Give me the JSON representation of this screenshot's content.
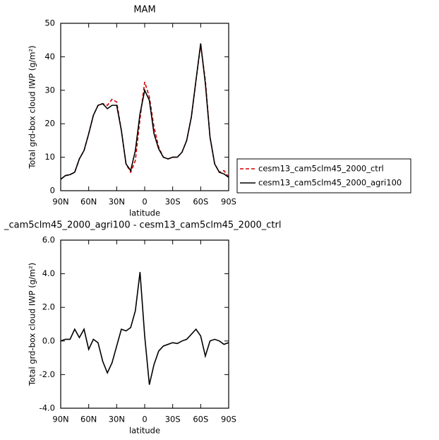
{
  "chart_data": [
    {
      "type": "line",
      "title": "MAM",
      "xlabel": "latitude",
      "ylabel": "Total grd-box cloud IWP (g/m²)",
      "x": [
        90,
        85,
        80,
        75,
        70,
        65,
        60,
        55,
        50,
        45,
        40,
        35,
        30,
        25,
        20,
        15,
        10,
        5,
        0,
        -5,
        -10,
        -15,
        -20,
        -25,
        -30,
        -35,
        -40,
        -45,
        -50,
        -55,
        -60,
        -65,
        -70,
        -75,
        -80,
        -85,
        -90
      ],
      "series": [
        {
          "name": "cesm13_cam5clm45_2000_ctrl",
          "color": "#d40000",
          "linestyle": "dashed",
          "values": [
            3.4,
            4.5,
            4.8,
            5.5,
            9.5,
            12,
            17,
            22.5,
            25.5,
            26,
            25.5,
            27.3,
            26.5,
            18,
            8,
            5.5,
            9,
            21.5,
            32.5,
            28,
            19,
            13,
            10,
            9.5,
            10,
            10,
            11.5,
            15,
            22,
            33,
            43.5,
            33,
            16,
            8,
            5.5,
            6,
            4
          ]
        },
        {
          "name": "cesm13_cam5clm45_2000_agri100",
          "color": "#000000",
          "linestyle": "solid",
          "values": [
            3.4,
            4.5,
            4.8,
            5.5,
            9.5,
            12,
            17,
            22.5,
            25.5,
            26,
            24.5,
            25.5,
            25.5,
            18,
            8,
            6,
            12,
            23,
            30,
            27,
            17,
            12.5,
            10,
            9.5,
            10,
            10,
            11.5,
            15,
            22,
            33,
            44,
            32,
            16,
            8,
            5.5,
            5,
            4
          ]
        }
      ],
      "xlim": [
        90,
        -90
      ],
      "xticks": [
        {
          "value": 90,
          "label": "90N"
        },
        {
          "value": 60,
          "label": "60N"
        },
        {
          "value": 30,
          "label": "30N"
        },
        0,
        {
          "value": -30,
          "label": "30S"
        },
        {
          "value": -60,
          "label": "60S"
        },
        {
          "value": -90,
          "label": "90S"
        }
      ],
      "ylim": [
        0,
        50
      ],
      "yticks": [
        0,
        10,
        20,
        30,
        40,
        50
      ],
      "legend": "right"
    },
    {
      "type": "line",
      "title": "_cam5clm45_2000_agri100 - cesm13_cam5clm45_2000_ctrl",
      "xlabel": "latitude",
      "ylabel": "Total grd-box cloud IWP (g/m²)",
      "x": [
        90,
        85,
        80,
        75,
        70,
        65,
        60,
        55,
        50,
        45,
        40,
        35,
        30,
        25,
        20,
        15,
        10,
        5,
        0,
        -5,
        -10,
        -15,
        -20,
        -25,
        -30,
        -35,
        -40,
        -45,
        -50,
        -55,
        -60,
        -65,
        -70,
        -75,
        -80,
        -85,
        -90
      ],
      "series": [
        {
          "color": "#000000",
          "linestyle": "solid",
          "values": [
            0,
            0.1,
            0.1,
            0.7,
            0.2,
            0.7,
            -0.5,
            0.1,
            -0.1,
            -1.2,
            -1.9,
            -1.3,
            -0.3,
            0.7,
            0.6,
            0.8,
            1.8,
            4.1,
            0.3,
            -2.6,
            -1.4,
            -0.6,
            -0.3,
            -0.2,
            -0.1,
            -0.15,
            0,
            0.1,
            0.4,
            0.7,
            0.3,
            -0.9,
            0,
            0.1,
            0,
            -0.2,
            -0.1
          ]
        }
      ],
      "xlim": [
        90,
        -90
      ],
      "xticks": [
        {
          "value": 90,
          "label": "90N"
        },
        {
          "value": 60,
          "label": "60N"
        },
        {
          "value": 30,
          "label": "30N"
        },
        0,
        {
          "value": -30,
          "label": "30S"
        },
        {
          "value": -60,
          "label": "60S"
        },
        {
          "value": -90,
          "label": "90S"
        }
      ],
      "ylim": [
        -4,
        6
      ],
      "yticks": [
        {
          "value": -4,
          "label": "-4.0"
        },
        {
          "value": -2,
          "label": "-2.0"
        },
        {
          "value": 0,
          "label": "0.0"
        },
        {
          "value": 2,
          "label": "2.0"
        },
        {
          "value": 4,
          "label": "4.0"
        },
        {
          "value": 6,
          "label": "6.0"
        }
      ]
    }
  ]
}
